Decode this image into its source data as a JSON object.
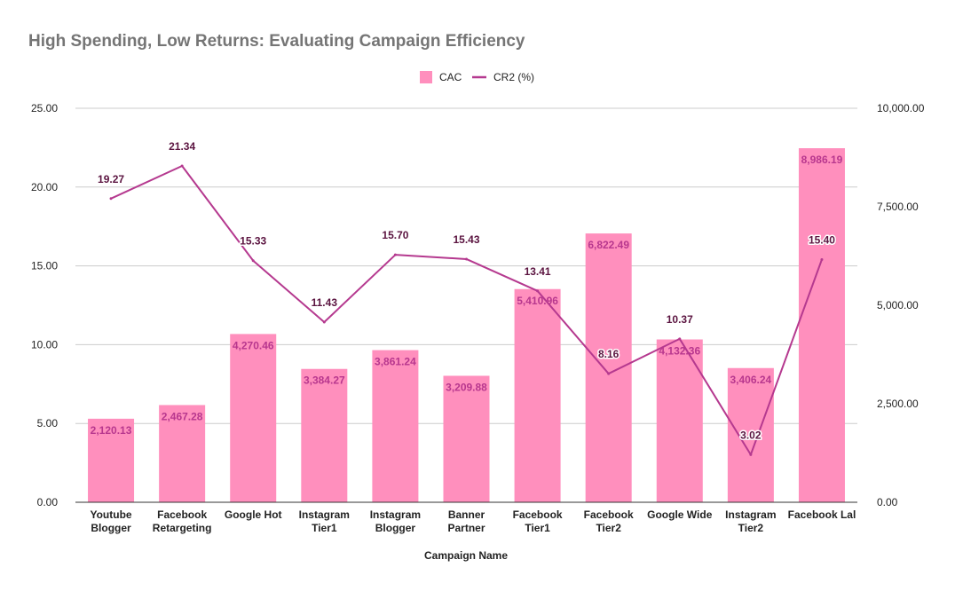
{
  "chart_data": {
    "type": "bar",
    "title": "High Spending, Low Returns: Evaluating Campaign Efficiency",
    "xlabel": "Campaign Name",
    "categories": [
      [
        "Youtube",
        "Blogger"
      ],
      [
        "Facebook",
        "Retargeting"
      ],
      [
        "Google Hot"
      ],
      [
        "Instagram",
        "Tier1"
      ],
      [
        "Instagram",
        "Blogger"
      ],
      [
        "Banner",
        "Partner"
      ],
      [
        "Facebook",
        "Tier1"
      ],
      [
        "Facebook",
        "Tier2"
      ],
      [
        "Google Wide"
      ],
      [
        "Instagram",
        "Tier2"
      ],
      [
        "Facebook Lal"
      ]
    ],
    "series": [
      {
        "name": "CAC",
        "type": "bar",
        "axis": "right",
        "color": "#ff8fbd",
        "values": [
          2120.13,
          2467.28,
          4270.46,
          3384.27,
          3861.24,
          3209.88,
          5410.96,
          6822.49,
          4132.36,
          3406.24,
          8986.19
        ],
        "labels": [
          "2,120.13",
          "2,467.28",
          "4,270.46",
          "3,384.27",
          "3,861.24",
          "3,209.88",
          "5,410.96",
          "6,822.49",
          "4,132.36",
          "3,406.24",
          "8,986.19"
        ]
      },
      {
        "name": "CR2 (%)",
        "type": "line",
        "axis": "left",
        "color": "#b5398f",
        "values": [
          19.27,
          21.34,
          15.33,
          11.43,
          15.7,
          15.43,
          13.41,
          8.16,
          10.37,
          3.02,
          15.4
        ],
        "labels": [
          "19.27",
          "21.34",
          "15.33",
          "11.43",
          "15.70",
          "15.43",
          "13.41",
          "8.16",
          "10.37",
          "3.02",
          "15.40"
        ]
      }
    ],
    "left_axis": {
      "range": [
        0,
        25
      ],
      "ticks": [
        0,
        5,
        10,
        15,
        20,
        25
      ],
      "tick_labels": [
        "0.00",
        "5.00",
        "10.00",
        "15.00",
        "20.00",
        "25.00"
      ]
    },
    "right_axis": {
      "range": [
        0,
        10000
      ],
      "ticks": [
        0,
        2500,
        5000,
        7500,
        10000
      ],
      "tick_labels": [
        "0.00",
        "2,500.00",
        "5,000.00",
        "7,500.00",
        "10,000.00"
      ]
    },
    "grid": true,
    "legend_position": "top-center"
  }
}
